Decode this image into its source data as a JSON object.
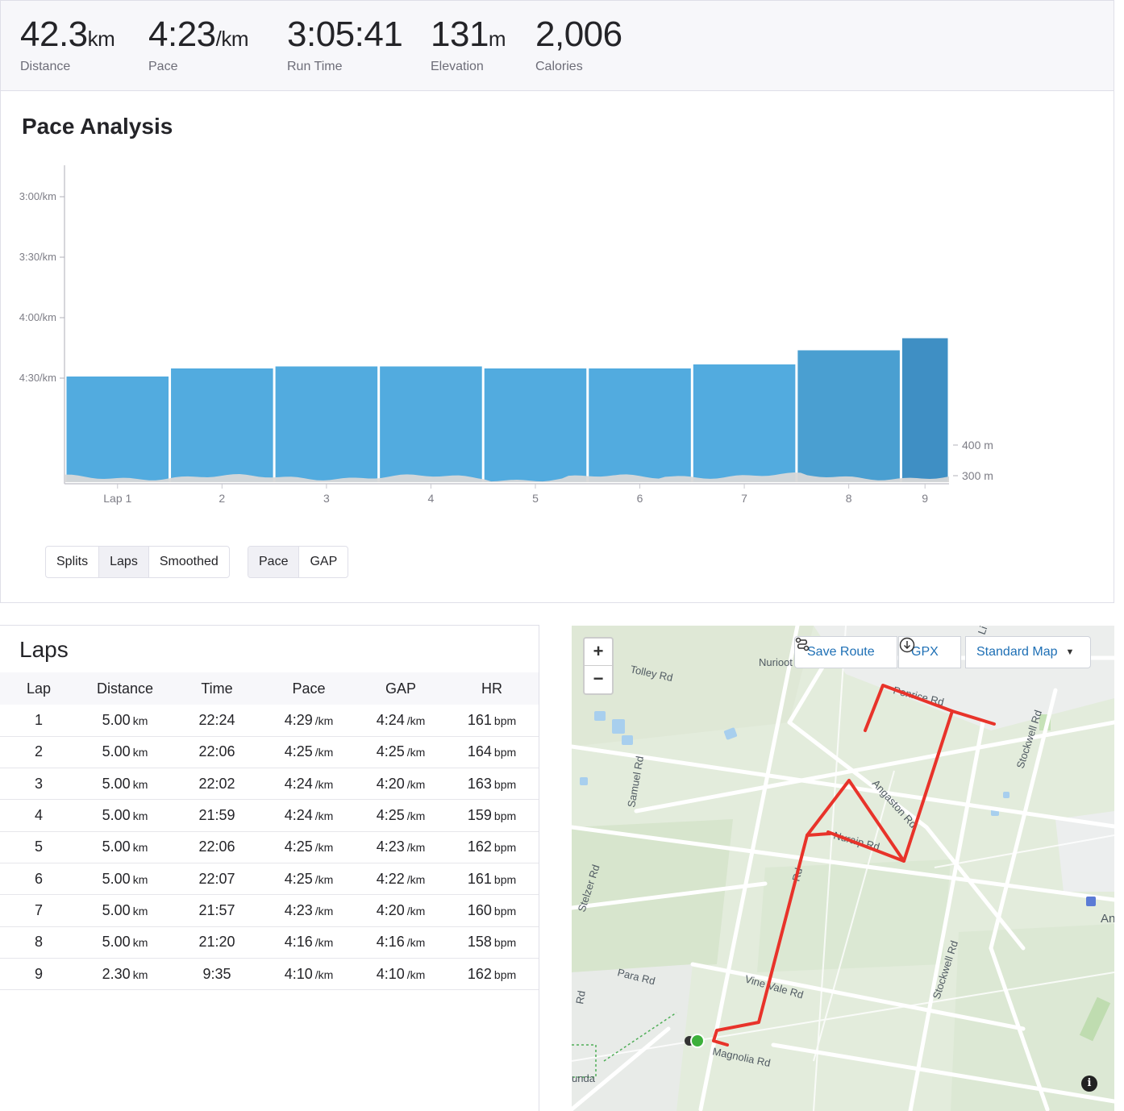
{
  "stats": [
    {
      "value": "42.3",
      "unit": "km",
      "label": "Distance"
    },
    {
      "value": "4:23",
      "unit": "/km",
      "label": "Pace"
    },
    {
      "value": "3:05:41",
      "unit": "",
      "label": "Run Time"
    },
    {
      "value": "131",
      "unit": "m",
      "label": "Elevation"
    },
    {
      "value": "2,006",
      "unit": "",
      "label": "Calories"
    }
  ],
  "analysis": {
    "title": "Pace Analysis",
    "view_buttons": [
      {
        "label": "Splits",
        "active": false
      },
      {
        "label": "Laps",
        "active": true
      },
      {
        "label": "Smoothed",
        "active": false
      }
    ],
    "metric_buttons": [
      {
        "label": "Pace",
        "active": true
      },
      {
        "label": "GAP",
        "active": false
      }
    ]
  },
  "chart_data": {
    "type": "bar",
    "title": "Pace Analysis",
    "categories": [
      "Lap 1",
      "2",
      "3",
      "4",
      "5",
      "6",
      "7",
      "8",
      "9"
    ],
    "lap_distance_km": [
      5.0,
      5.0,
      5.0,
      5.0,
      5.0,
      5.0,
      5.0,
      5.0,
      2.3
    ],
    "pace_sec_per_km": [
      269,
      265,
      264,
      264,
      265,
      265,
      263,
      256,
      250
    ],
    "y_ticks": [
      "3:00/km",
      "3:30/km",
      "4:00/km",
      "4:30/km"
    ],
    "elevation_ticks": [
      "400 m",
      "300 m"
    ],
    "colors": {
      "bar": "#52abdf",
      "bar_lap8": "#4a9fd1",
      "bar_lap9": "#3f8fc4",
      "elevation": "#d8d8d8"
    }
  },
  "laps": {
    "title": "Laps",
    "columns": [
      "Lap",
      "Distance",
      "Time",
      "Pace",
      "GAP",
      "HR"
    ],
    "rows": [
      {
        "lap": "1",
        "dist": "5.00",
        "time": "22:24",
        "pace": "4:29",
        "gap": "4:24",
        "hr": "161"
      },
      {
        "lap": "2",
        "dist": "5.00",
        "time": "22:06",
        "pace": "4:25",
        "gap": "4:25",
        "hr": "164"
      },
      {
        "lap": "3",
        "dist": "5.00",
        "time": "22:02",
        "pace": "4:24",
        "gap": "4:20",
        "hr": "163"
      },
      {
        "lap": "4",
        "dist": "5.00",
        "time": "21:59",
        "pace": "4:24",
        "gap": "4:25",
        "hr": "159"
      },
      {
        "lap": "5",
        "dist": "5.00",
        "time": "22:06",
        "pace": "4:25",
        "gap": "4:23",
        "hr": "162"
      },
      {
        "lap": "6",
        "dist": "5.00",
        "time": "22:07",
        "pace": "4:25",
        "gap": "4:22",
        "hr": "161"
      },
      {
        "lap": "7",
        "dist": "5.00",
        "time": "21:57",
        "pace": "4:23",
        "gap": "4:20",
        "hr": "160"
      },
      {
        "lap": "8",
        "dist": "5.00",
        "time": "21:20",
        "pace": "4:16",
        "gap": "4:16",
        "hr": "158"
      },
      {
        "lap": "9",
        "dist": "2.30",
        "time": "9:35",
        "pace": "4:10",
        "gap": "4:10",
        "hr": "162"
      }
    ],
    "units": {
      "dist": "km",
      "pace": "/km",
      "hr": "bpm"
    }
  },
  "map": {
    "zoom_in": "+",
    "zoom_out": "−",
    "save_route": "Save Route",
    "gpx": "GPX",
    "map_style": "Standard Map",
    "info": "i",
    "labels": [
      "Tolley Rd",
      "Nurioot",
      "Penrice Rd",
      "Stockwell Rd",
      "Samuel Rd",
      "Angaston Rd",
      "Nuraip Rd",
      "Stelzer Rd",
      "Para Rd",
      "Vine Vale Rd",
      "Stockwell Rd",
      "Magnolia Rd",
      "Rd",
      "Rd",
      "unda",
      "An",
      "Li"
    ],
    "route_color": "#e8332a"
  }
}
